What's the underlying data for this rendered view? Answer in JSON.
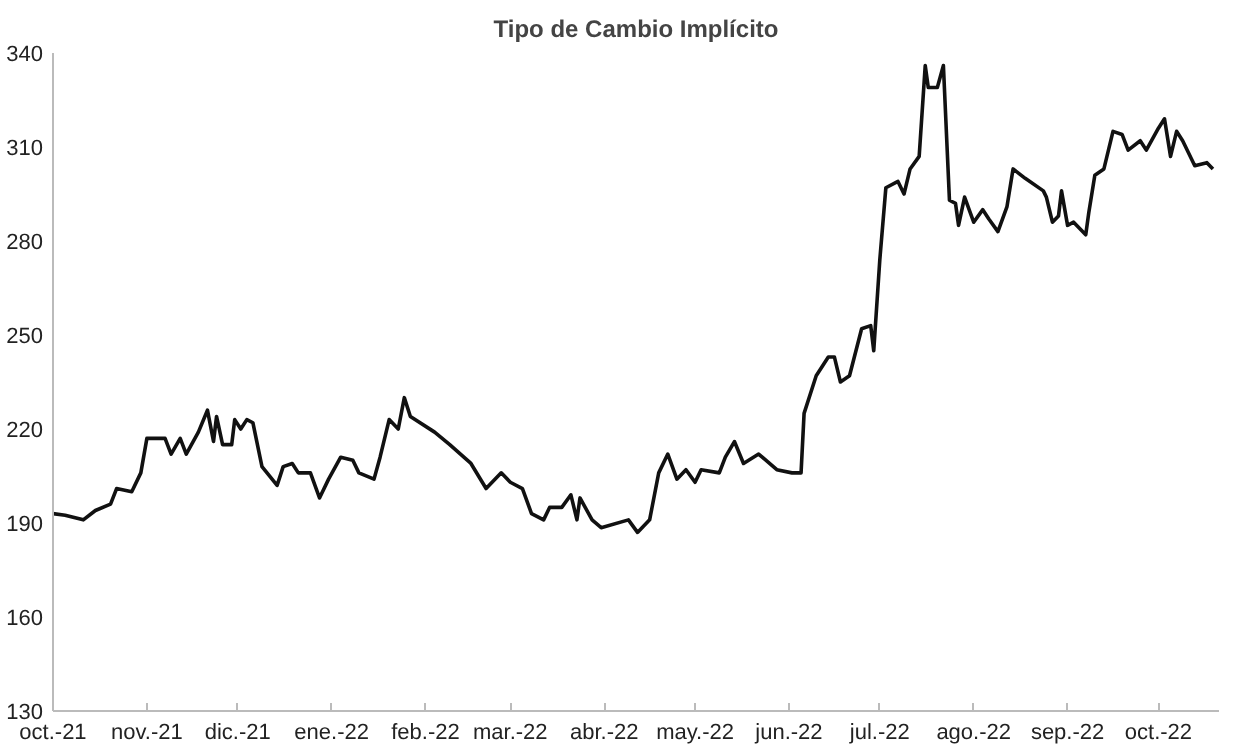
{
  "chart_data": {
    "type": "line",
    "title": "Tipo de Cambio Implícito",
    "x": [
      "2021-10-01",
      "2021-10-05",
      "2021-10-11",
      "2021-10-15",
      "2021-10-20",
      "2021-10-22",
      "2021-10-27",
      "2021-10-30",
      "2021-11-01",
      "2021-11-07",
      "2021-11-09",
      "2021-11-12",
      "2021-11-14",
      "2021-11-18",
      "2021-11-21",
      "2021-11-23",
      "2021-11-24",
      "2021-11-26",
      "2021-11-29",
      "2021-11-30",
      "2021-12-02",
      "2021-12-04",
      "2021-12-06",
      "2021-12-09",
      "2021-12-14",
      "2021-12-16",
      "2021-12-19",
      "2021-12-21",
      "2021-12-25",
      "2021-12-28",
      "2021-12-31",
      "2022-01-04",
      "2022-01-08",
      "2022-01-10",
      "2022-01-15",
      "2022-01-17",
      "2022-01-20",
      "2022-01-23",
      "2022-01-25",
      "2022-01-27",
      "2022-02-04",
      "2022-02-09",
      "2022-02-16",
      "2022-02-21",
      "2022-02-26",
      "2022-03-01",
      "2022-03-05",
      "2022-03-08",
      "2022-03-12",
      "2022-03-14",
      "2022-03-18",
      "2022-03-21",
      "2022-03-23",
      "2022-03-24",
      "2022-03-28",
      "2022-03-31",
      "2022-04-09",
      "2022-04-12",
      "2022-04-16",
      "2022-04-19",
      "2022-04-22",
      "2022-04-25",
      "2022-04-28",
      "2022-05-01",
      "2022-05-03",
      "2022-05-09",
      "2022-05-11",
      "2022-05-14",
      "2022-05-17",
      "2022-05-22",
      "2022-05-28",
      "2022-06-02",
      "2022-06-05",
      "2022-06-06",
      "2022-06-10",
      "2022-06-14",
      "2022-06-16",
      "2022-06-18",
      "2022-06-21",
      "2022-06-25",
      "2022-06-28",
      "2022-06-29",
      "2022-07-01",
      "2022-07-03",
      "2022-07-07",
      "2022-07-09",
      "2022-07-11",
      "2022-07-14",
      "2022-07-16",
      "2022-07-17",
      "2022-07-20",
      "2022-07-22",
      "2022-07-24",
      "2022-07-26",
      "2022-07-27",
      "2022-07-29",
      "2022-08-01",
      "2022-08-04",
      "2022-08-06",
      "2022-08-09",
      "2022-08-12",
      "2022-08-14",
      "2022-08-18",
      "2022-08-24",
      "2022-08-25",
      "2022-08-27",
      "2022-08-29",
      "2022-08-30",
      "2022-09-01",
      "2022-09-03",
      "2022-09-07",
      "2022-09-08",
      "2022-09-10",
      "2022-09-13",
      "2022-09-16",
      "2022-09-19",
      "2022-09-21",
      "2022-09-25",
      "2022-09-27",
      "2022-10-01",
      "2022-10-03",
      "2022-10-05",
      "2022-10-07",
      "2022-10-09",
      "2022-10-13",
      "2022-10-17",
      "2022-10-19"
    ],
    "series": [
      {
        "color": "#111111",
        "values": [
          193,
          192.5,
          191,
          194,
          196,
          201,
          200,
          206,
          217,
          217,
          212,
          217,
          212,
          219,
          226,
          216,
          224,
          215,
          215,
          223,
          220,
          223,
          222,
          208,
          202,
          208,
          209,
          206,
          206,
          198,
          204,
          211,
          210,
          206,
          204,
          211,
          223,
          220,
          230,
          224,
          219,
          215,
          209,
          201,
          206,
          203,
          201,
          193,
          191,
          195,
          195,
          199,
          191,
          198,
          191,
          188.5,
          191,
          187,
          191,
          206,
          212,
          204,
          207,
          203,
          207,
          206,
          211,
          216,
          209,
          212,
          207,
          206,
          206,
          225,
          237,
          243,
          243,
          235,
          237,
          252,
          253,
          245,
          274,
          297,
          299,
          295,
          303,
          307,
          336,
          329,
          329,
          336,
          293,
          292,
          285,
          294,
          286,
          290,
          287,
          283,
          291,
          303,
          300,
          296,
          294,
          286,
          288,
          296,
          285,
          286,
          282,
          289,
          301,
          303,
          315,
          314,
          309,
          312,
          309,
          316,
          319,
          307,
          315,
          312,
          304,
          305,
          303
        ]
      }
    ],
    "xlim": [
      "2021-10-01",
      "2022-10-21"
    ],
    "xticks": [
      {
        "value": "2021-10-01",
        "label": "oct.-21"
      },
      {
        "value": "2021-11-01",
        "label": "nov.-21"
      },
      {
        "value": "2021-12-01",
        "label": "dic.-21"
      },
      {
        "value": "2022-01-01",
        "label": "ene.-22"
      },
      {
        "value": "2022-02-01",
        "label": "feb.-22"
      },
      {
        "value": "2022-03-01",
        "label": "mar.-22"
      },
      {
        "value": "2022-04-01",
        "label": "abr.-22"
      },
      {
        "value": "2022-05-01",
        "label": "may.-22"
      },
      {
        "value": "2022-06-01",
        "label": "jun.-22"
      },
      {
        "value": "2022-07-01",
        "label": "jul.-22"
      },
      {
        "value": "2022-08-01",
        "label": "ago.-22"
      },
      {
        "value": "2022-09-01",
        "label": "sep.-22"
      },
      {
        "value": "2022-10-01",
        "label": "oct.-22"
      }
    ],
    "ylim": [
      130,
      340
    ],
    "yticks": [
      130,
      160,
      190,
      220,
      250,
      280,
      310,
      340
    ],
    "grid": false,
    "line_style": "solid"
  }
}
